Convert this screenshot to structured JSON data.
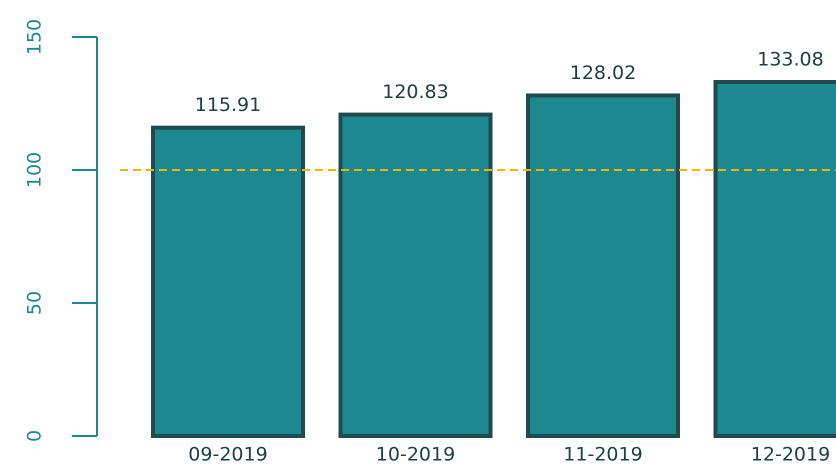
{
  "chart_data": {
    "type": "bar",
    "categories": [
      "09-2019",
      "10-2019",
      "11-2019",
      "12-2019"
    ],
    "values": [
      115.91,
      120.83,
      128.02,
      133.08
    ],
    "color": "#1e8890",
    "edge_color": "#1f4b4f",
    "ylim": [
      0,
      150
    ],
    "yticks": [
      0,
      50,
      100,
      150
    ],
    "reference_line": {
      "value": 100,
      "color": "#e6b800",
      "style": "dashed"
    },
    "grid": false
  }
}
